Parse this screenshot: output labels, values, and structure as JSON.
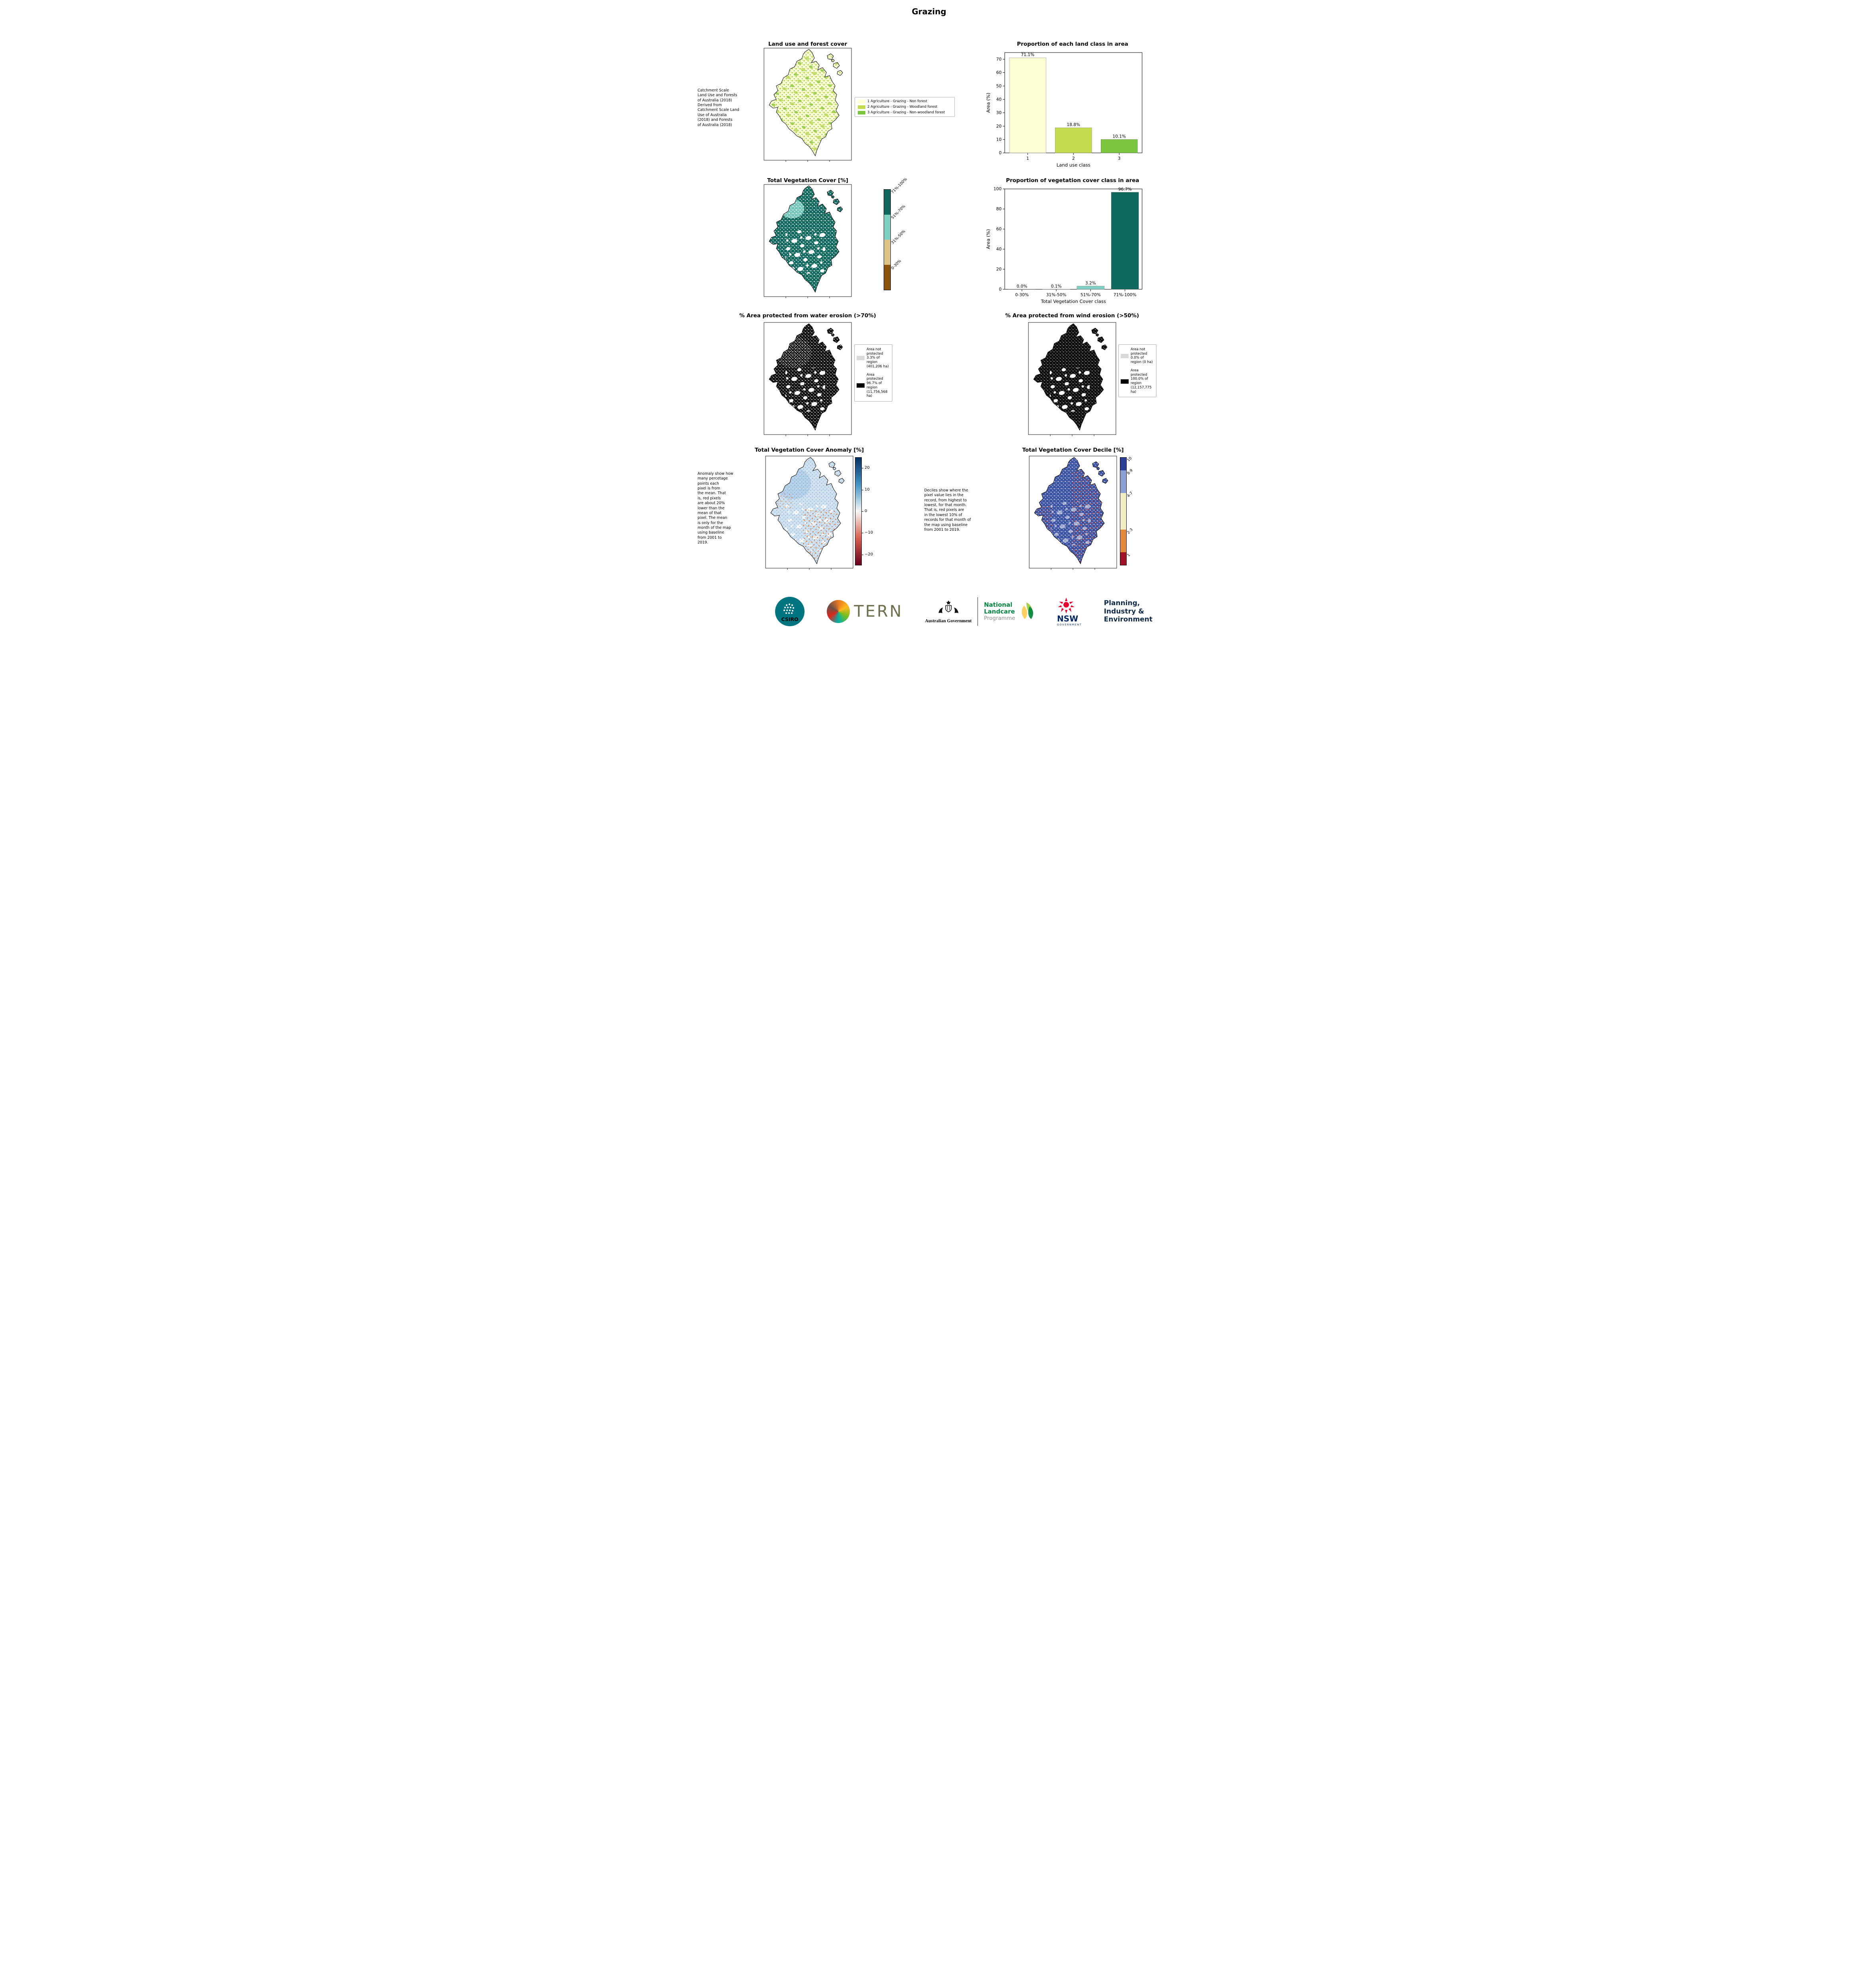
{
  "page_title": "Grazing",
  "panels": {
    "land_use": {
      "title": "Land use and forest cover",
      "side_text": "Catchment Scale\nLand Use and Forests\nof Australia (2018)\nDerived from\nCatchment Scale Land\nUse of Australia\n(2018) and Forests\nof Australia (2018)",
      "map_base": "#fbfbd6",
      "legend": [
        {
          "label": "1 Agriculture - Grazing - Non forest",
          "color": "#ffffd6"
        },
        {
          "label": "2 Agriculture - Grazing - Woodland forest",
          "color": "#c4da4f"
        },
        {
          "label": "3 Agriculture - Grazing - Non-woodland forest",
          "color": "#7cc63f"
        }
      ]
    },
    "veg_cover": {
      "title": "Total Vegetation Cover [%]",
      "map_base": "#10695f",
      "colorbar": [
        {
          "label": "71%-100%",
          "color": "#10695f",
          "size": 25
        },
        {
          "label": "51%-70%",
          "color": "#7fd0c4",
          "size": 25
        },
        {
          "label": "31%-50%",
          "color": "#dcc487",
          "size": 25
        },
        {
          "label": "0-30%",
          "color": "#8a540b",
          "size": 25
        }
      ]
    },
    "water_erosion": {
      "title": "% Area protected from water erosion (>70%)",
      "map_base": "#0b0b0b",
      "legend": [
        {
          "label": "Area not protected 3.3% of region (401,206 ha)",
          "color": "#d9d9d9"
        },
        {
          "label": "Area protected 96.7% of region (11,756,568 ha)",
          "color": "#000000"
        }
      ]
    },
    "wind_erosion": {
      "title": "% Area protected from wind erosion (>50%)",
      "map_base": "#0b0b0b",
      "legend": [
        {
          "label": "Area not protected 0.0% of region (0 ha)",
          "color": "#d9d9d9"
        },
        {
          "label": "Area protected 100.0% of region (12,157,775 ha)",
          "color": "#000000"
        }
      ]
    },
    "anomaly": {
      "title": "Total Vegetation Cover Anomaly [%]",
      "side_text": "Anomaly show how\nmany percetage\npoints each\npixel is from\nthe mean. That\nis, red pixels\nare about 20%\nlower than the\nmean of that\npixel. The mean\nis only for the\nmonth of the map\nusing baseline\nfrom 2001 to\n2019.",
      "map_base": "#cfe0ee",
      "colorbar": {
        "ticks": [
          "20",
          "10",
          "0",
          "−10",
          "−20"
        ],
        "stops": [
          "#053061",
          "#4393c3",
          "#f7f7f7",
          "#d6604d",
          "#67001f"
        ]
      }
    },
    "decile": {
      "title": "Total Vegetation Cover Decile [%]",
      "side_text": "Deciles show where the\npixel value lies in the\nrecord, from highest to\nlowest, for that month.\nThat is, red pixels are\nin the lowest 10% of\nrecords for that month of\nthe map using baseline\nfrom 2001 to 2019.",
      "map_base": "#3d53a4",
      "colorbar": [
        {
          "label": "10",
          "color": "#2c3f94",
          "size": 12
        },
        {
          "label": "8-9",
          "color": "#8aa0d2",
          "size": 21
        },
        {
          "label": "4-7",
          "color": "#f2ecc2",
          "size": 34
        },
        {
          "label": "2-3",
          "color": "#e0883d",
          "size": 21
        },
        {
          "label": "1",
          "color": "#9f1226",
          "size": 12
        }
      ]
    }
  },
  "chart_data": [
    {
      "type": "bar",
      "title": "Proportion of each land class in area",
      "categories": [
        "1",
        "2",
        "3"
      ],
      "values": [
        71.1,
        18.8,
        10.1
      ],
      "bar_labels": [
        "71.1%",
        "18.8%",
        "10.1%"
      ],
      "colors": [
        "#ffffd6",
        "#c4da4f",
        "#7cc63f"
      ],
      "xlabel": "Land use class",
      "ylabel": "Area (%)",
      "ylim": [
        0,
        75
      ],
      "yticks": [
        0,
        10,
        20,
        30,
        40,
        50,
        60,
        70
      ],
      "legend_position": "none",
      "grid": false
    },
    {
      "type": "bar",
      "title": "Proportion of vegetation cover class in area",
      "categories": [
        "0-30%",
        "31%-50%",
        "51%-70%",
        "71%-100%"
      ],
      "values": [
        0.0,
        0.1,
        3.2,
        96.7
      ],
      "bar_labels": [
        "0.0%",
        "0.1%",
        "3.2%",
        "96.7%"
      ],
      "colors": [
        "#8a540b",
        "#dcc487",
        "#7fd0c4",
        "#10695f"
      ],
      "xlabel": "Total Vegetation Cover class",
      "ylabel": "Area (%)",
      "ylim": [
        0,
        100
      ],
      "yticks": [
        0,
        20,
        40,
        60,
        80,
        100
      ],
      "legend_position": "none",
      "grid": false
    }
  ],
  "footer": {
    "csiro": "CSIRO",
    "tern": "TERN",
    "aus_gov": "Australian Government",
    "landcare_1": "National",
    "landcare_2": "Landcare",
    "landcare_3": "Programme",
    "nsw": "NSW",
    "nsw_sub": "GOVERNMENT",
    "planning": "Planning,\nIndustry &\nEnvironment"
  }
}
